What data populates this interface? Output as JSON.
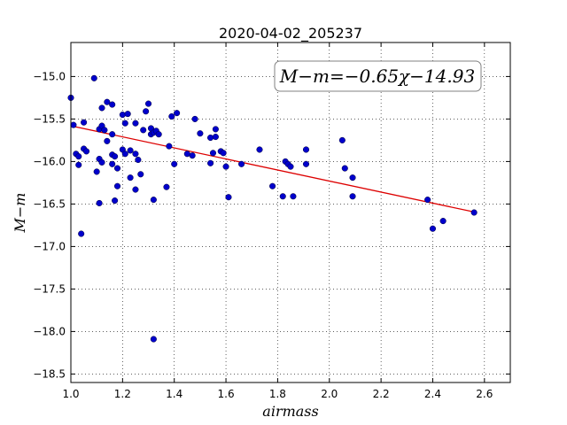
{
  "chart_data": {
    "type": "scatter",
    "title": "2020-04-02_205237",
    "xlabel": "airmass",
    "ylabel": "M−m",
    "annotation": "M−m=−0.65χ−14.93",
    "xlim": [
      1.0,
      2.7
    ],
    "ylim": [
      -18.6,
      -14.6
    ],
    "y_inverted": true,
    "grid": true,
    "xticks": [
      "1.0",
      "1.2",
      "1.4",
      "1.6",
      "1.8",
      "2.0",
      "2.2",
      "2.4",
      "2.6"
    ],
    "yticks": [
      "−15.0",
      "−15.5",
      "−16.0",
      "−16.5",
      "−17.0",
      "−17.5",
      "−18.0",
      "−18.5"
    ],
    "fit": {
      "slope": -0.65,
      "intercept": -14.93,
      "x_range": [
        1.0,
        2.56
      ]
    },
    "points": [
      [
        1.0,
        -15.25
      ],
      [
        1.01,
        -15.57
      ],
      [
        1.02,
        -15.91
      ],
      [
        1.03,
        -16.04
      ],
      [
        1.03,
        -15.94
      ],
      [
        1.04,
        -16.85
      ],
      [
        1.05,
        -15.54
      ],
      [
        1.05,
        -15.85
      ],
      [
        1.06,
        -15.88
      ],
      [
        1.09,
        -15.02
      ],
      [
        1.1,
        -16.12
      ],
      [
        1.11,
        -16.49
      ],
      [
        1.11,
        -15.62
      ],
      [
        1.11,
        -15.97
      ],
      [
        1.12,
        -15.37
      ],
      [
        1.12,
        -16.01
      ],
      [
        1.12,
        -15.58
      ],
      [
        1.13,
        -15.63
      ],
      [
        1.14,
        -15.76
      ],
      [
        1.14,
        -15.3
      ],
      [
        1.16,
        -15.68
      ],
      [
        1.16,
        -15.33
      ],
      [
        1.16,
        -15.92
      ],
      [
        1.16,
        -16.03
      ],
      [
        1.17,
        -15.94
      ],
      [
        1.17,
        -16.46
      ],
      [
        1.18,
        -16.08
      ],
      [
        1.18,
        -16.29
      ],
      [
        1.2,
        -15.86
      ],
      [
        1.2,
        -15.45
      ],
      [
        1.21,
        -15.55
      ],
      [
        1.21,
        -15.91
      ],
      [
        1.22,
        -15.44
      ],
      [
        1.23,
        -15.87
      ],
      [
        1.23,
        -16.19
      ],
      [
        1.25,
        -15.91
      ],
      [
        1.25,
        -16.33
      ],
      [
        1.25,
        -15.55
      ],
      [
        1.26,
        -15.98
      ],
      [
        1.27,
        -16.15
      ],
      [
        1.28,
        -15.63
      ],
      [
        1.29,
        -15.41
      ],
      [
        1.3,
        -15.32
      ],
      [
        1.31,
        -15.61
      ],
      [
        1.31,
        -15.68
      ],
      [
        1.32,
        -16.45
      ],
      [
        1.32,
        -15.66
      ],
      [
        1.32,
        -18.09
      ],
      [
        1.33,
        -15.64
      ],
      [
        1.34,
        -15.68
      ],
      [
        1.37,
        -16.3
      ],
      [
        1.38,
        -15.82
      ],
      [
        1.39,
        -15.47
      ],
      [
        1.4,
        -16.03
      ],
      [
        1.41,
        -15.43
      ],
      [
        1.45,
        -15.91
      ],
      [
        1.47,
        -15.93
      ],
      [
        1.48,
        -15.5
      ],
      [
        1.5,
        -15.67
      ],
      [
        1.54,
        -16.02
      ],
      [
        1.54,
        -15.72
      ],
      [
        1.55,
        -15.9
      ],
      [
        1.56,
        -15.71
      ],
      [
        1.56,
        -15.62
      ],
      [
        1.58,
        -15.88
      ],
      [
        1.59,
        -15.9
      ],
      [
        1.6,
        -16.06
      ],
      [
        1.61,
        -16.42
      ],
      [
        1.66,
        -16.03
      ],
      [
        1.73,
        -15.86
      ],
      [
        1.78,
        -16.29
      ],
      [
        1.82,
        -16.41
      ],
      [
        1.83,
        -16.0
      ],
      [
        1.84,
        -16.03
      ],
      [
        1.85,
        -16.06
      ],
      [
        1.86,
        -16.41
      ],
      [
        1.91,
        -16.03
      ],
      [
        1.91,
        -15.86
      ],
      [
        2.05,
        -15.75
      ],
      [
        2.06,
        -16.08
      ],
      [
        2.09,
        -16.19
      ],
      [
        2.09,
        -16.41
      ],
      [
        2.38,
        -16.45
      ],
      [
        2.4,
        -16.79
      ],
      [
        2.44,
        -16.7
      ],
      [
        2.56,
        -16.6
      ]
    ]
  }
}
